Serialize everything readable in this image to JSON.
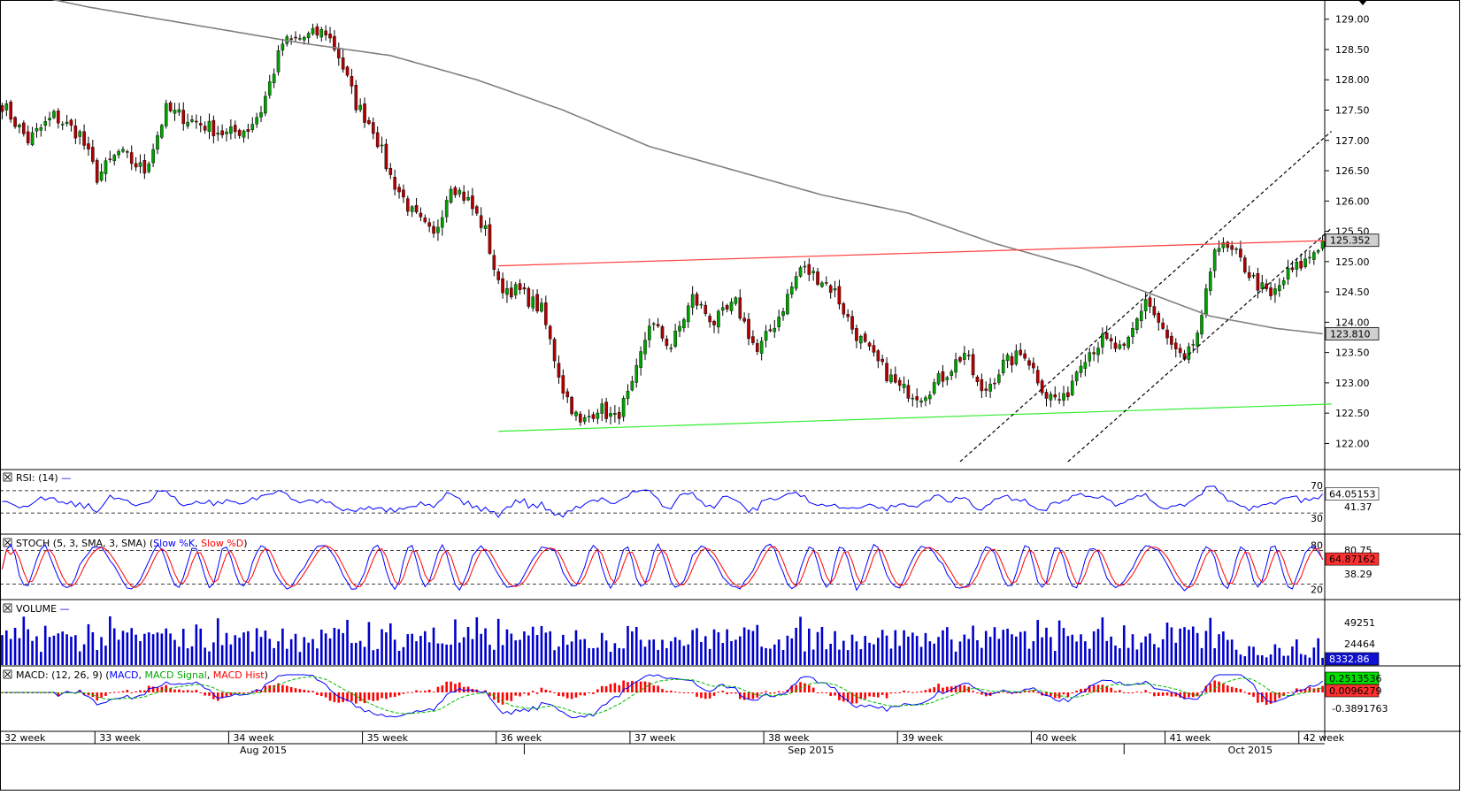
{
  "chart_data": {
    "type": "candlestick",
    "series_colors": {
      "up": "#00a000",
      "down": "#b00000",
      "sma": "#808080",
      "resistance": "#ff4040",
      "support": "#33ee33",
      "channel": "#000000"
    },
    "price_panel": {
      "ylim": [
        121.7,
        129.2
      ],
      "ticks": [
        "129.00",
        "128.50",
        "128.00",
        "127.50",
        "127.00",
        "126.50",
        "126.00",
        "125.50",
        "125.00",
        "124.50",
        "124.00",
        "123.50",
        "123.00",
        "122.50",
        "122.00"
      ],
      "last_price_label": "125.352",
      "last_price": 125.352,
      "sma_label": "123.810",
      "sma_value": 123.81,
      "anchors": [
        {
          "i": 0,
          "p": 127.6
        },
        {
          "i": 6,
          "p": 127.0
        },
        {
          "i": 12,
          "p": 127.4
        },
        {
          "i": 18,
          "p": 127.1
        },
        {
          "i": 22,
          "p": 126.4
        },
        {
          "i": 27,
          "p": 126.8
        },
        {
          "i": 33,
          "p": 126.5
        },
        {
          "i": 38,
          "p": 127.5
        },
        {
          "i": 45,
          "p": 127.3
        },
        {
          "i": 52,
          "p": 127.1
        },
        {
          "i": 57,
          "p": 127.2
        },
        {
          "i": 60,
          "p": 127.5
        },
        {
          "i": 65,
          "p": 128.6
        },
        {
          "i": 70,
          "p": 128.7
        },
        {
          "i": 75,
          "p": 128.8
        },
        {
          "i": 78,
          "p": 128.4
        },
        {
          "i": 82,
          "p": 127.6
        },
        {
          "i": 86,
          "p": 127.2
        },
        {
          "i": 90,
          "p": 126.4
        },
        {
          "i": 95,
          "p": 125.8
        },
        {
          "i": 100,
          "p": 125.4
        },
        {
          "i": 104,
          "p": 126.3
        },
        {
          "i": 108,
          "p": 126.0
        },
        {
          "i": 112,
          "p": 125.5
        },
        {
          "i": 115,
          "p": 124.6
        },
        {
          "i": 120,
          "p": 124.5
        },
        {
          "i": 125,
          "p": 124.2
        },
        {
          "i": 130,
          "p": 122.9
        },
        {
          "i": 134,
          "p": 122.3
        },
        {
          "i": 138,
          "p": 122.6
        },
        {
          "i": 142,
          "p": 122.4
        },
        {
          "i": 146,
          "p": 122.9
        },
        {
          "i": 150,
          "p": 124.0
        },
        {
          "i": 155,
          "p": 123.6
        },
        {
          "i": 160,
          "p": 124.4
        },
        {
          "i": 165,
          "p": 124.0
        },
        {
          "i": 170,
          "p": 124.3
        },
        {
          "i": 175,
          "p": 123.5
        },
        {
          "i": 180,
          "p": 124.1
        },
        {
          "i": 185,
          "p": 124.9
        },
        {
          "i": 190,
          "p": 124.7
        },
        {
          "i": 193,
          "p": 124.5
        },
        {
          "i": 197,
          "p": 123.9
        },
        {
          "i": 202,
          "p": 123.4
        },
        {
          "i": 208,
          "p": 122.9
        },
        {
          "i": 213,
          "p": 122.8
        },
        {
          "i": 218,
          "p": 123.1
        },
        {
          "i": 223,
          "p": 123.5
        },
        {
          "i": 227,
          "p": 122.8
        },
        {
          "i": 232,
          "p": 123.3
        },
        {
          "i": 237,
          "p": 123.5
        },
        {
          "i": 242,
          "p": 122.8
        },
        {
          "i": 246,
          "p": 122.7
        },
        {
          "i": 250,
          "p": 123.4
        },
        {
          "i": 255,
          "p": 123.7
        },
        {
          "i": 260,
          "p": 123.5
        },
        {
          "i": 265,
          "p": 124.4
        },
        {
          "i": 270,
          "p": 123.7
        },
        {
          "i": 274,
          "p": 123.3
        },
        {
          "i": 278,
          "p": 124.0
        },
        {
          "i": 281,
          "p": 125.3
        },
        {
          "i": 286,
          "p": 125.1
        },
        {
          "i": 290,
          "p": 124.7
        },
        {
          "i": 294,
          "p": 124.4
        },
        {
          "i": 298,
          "p": 124.8
        },
        {
          "i": 302,
          "p": 125.0
        },
        {
          "i": 306,
          "p": 125.352
        }
      ],
      "sma_path": [
        [
          0,
          129.5
        ],
        [
          20,
          129.2
        ],
        [
          45,
          128.9
        ],
        [
          70,
          128.6
        ],
        [
          90,
          128.4
        ],
        [
          110,
          128.0
        ],
        [
          130,
          127.5
        ],
        [
          150,
          126.9
        ],
        [
          170,
          126.5
        ],
        [
          190,
          126.1
        ],
        [
          210,
          125.8
        ],
        [
          230,
          125.3
        ],
        [
          250,
          124.9
        ],
        [
          265,
          124.5
        ],
        [
          280,
          124.1
        ],
        [
          295,
          123.9
        ],
        [
          306,
          123.81
        ]
      ],
      "resistance_line": {
        "from": [
          115,
          124.93
        ],
        "to": [
          306,
          125.35
        ]
      },
      "support_line": {
        "from": [
          115,
          122.2
        ],
        "to": [
          306,
          122.65
        ]
      },
      "channel_upper": {
        "from": [
          222,
          121.7
        ],
        "to": [
          306,
          127.15
        ]
      },
      "channel_lower": {
        "from": [
          247,
          121.7
        ],
        "to": [
          306,
          125.55
        ]
      }
    },
    "panels": [
      {
        "name": "RSI",
        "label": "RSI (14)",
        "levels": [
          70,
          30
        ],
        "level_labels": [
          "70",
          "30"
        ],
        "extra_label": "41.37",
        "value_label": "64.05153",
        "line_color": "#0000ff",
        "ylim": [
          0,
          100
        ]
      },
      {
        "name": "STOCH",
        "label_parts": [
          [
            "STOCH (5, 3, SMA, 3, SMA) (",
            "#000000"
          ],
          [
            "Slow %K",
            "#0000ff"
          ],
          [
            ", ",
            "#000000"
          ],
          [
            "Slow %D",
            "#ff0000"
          ],
          [
            ")",
            "#000000"
          ]
        ],
        "levels": [
          80,
          20
        ],
        "level_labels": [
          "80",
          "20"
        ],
        "extra_labels": [
          "80.75",
          "38.29"
        ],
        "value_label": "64.87162",
        "ylim": [
          0,
          100
        ]
      },
      {
        "name": "VOLUME",
        "label": "VOLUME",
        "ticks": [
          "49251",
          "24464"
        ],
        "value_label": "8332.86",
        "bar_color": "#0000cc",
        "ylim": [
          0,
          70000
        ]
      },
      {
        "name": "MACD",
        "label_parts": [
          [
            "MACD: (12, 26, 9) (",
            "#000000"
          ],
          [
            "MACD",
            "#0000ff"
          ],
          [
            ", ",
            "#000000"
          ],
          [
            "MACD Signal",
            "#00aa00"
          ],
          [
            ", ",
            "#000000"
          ],
          [
            "MACD Hist",
            "#ff0000"
          ],
          [
            ")",
            "#000000"
          ]
        ],
        "value_labels": [
          "0.2513536",
          "0.0096279",
          "-0.3891763"
        ]
      }
    ],
    "x_axis": {
      "week_labels": [
        {
          "i": 0,
          "text": "32 week"
        },
        {
          "i": 22,
          "text": "33 week"
        },
        {
          "i": 53,
          "text": "34 week"
        },
        {
          "i": 84,
          "text": "35 week"
        },
        {
          "i": 115,
          "text": "36 week"
        },
        {
          "i": 146,
          "text": "37 week"
        },
        {
          "i": 177,
          "text": "38 week"
        },
        {
          "i": 208,
          "text": "39 week"
        },
        {
          "i": 239,
          "text": "40 week"
        },
        {
          "i": 270,
          "text": "41 week"
        },
        {
          "i": 301,
          "text": "42 week"
        }
      ],
      "month_labels": [
        {
          "i": 60,
          "text": "Aug 2015"
        },
        {
          "i": 187,
          "text": "Sep 2015"
        },
        {
          "i": 289,
          "text": "Oct 2015"
        }
      ],
      "month_dividers": [
        121,
        260
      ]
    }
  }
}
